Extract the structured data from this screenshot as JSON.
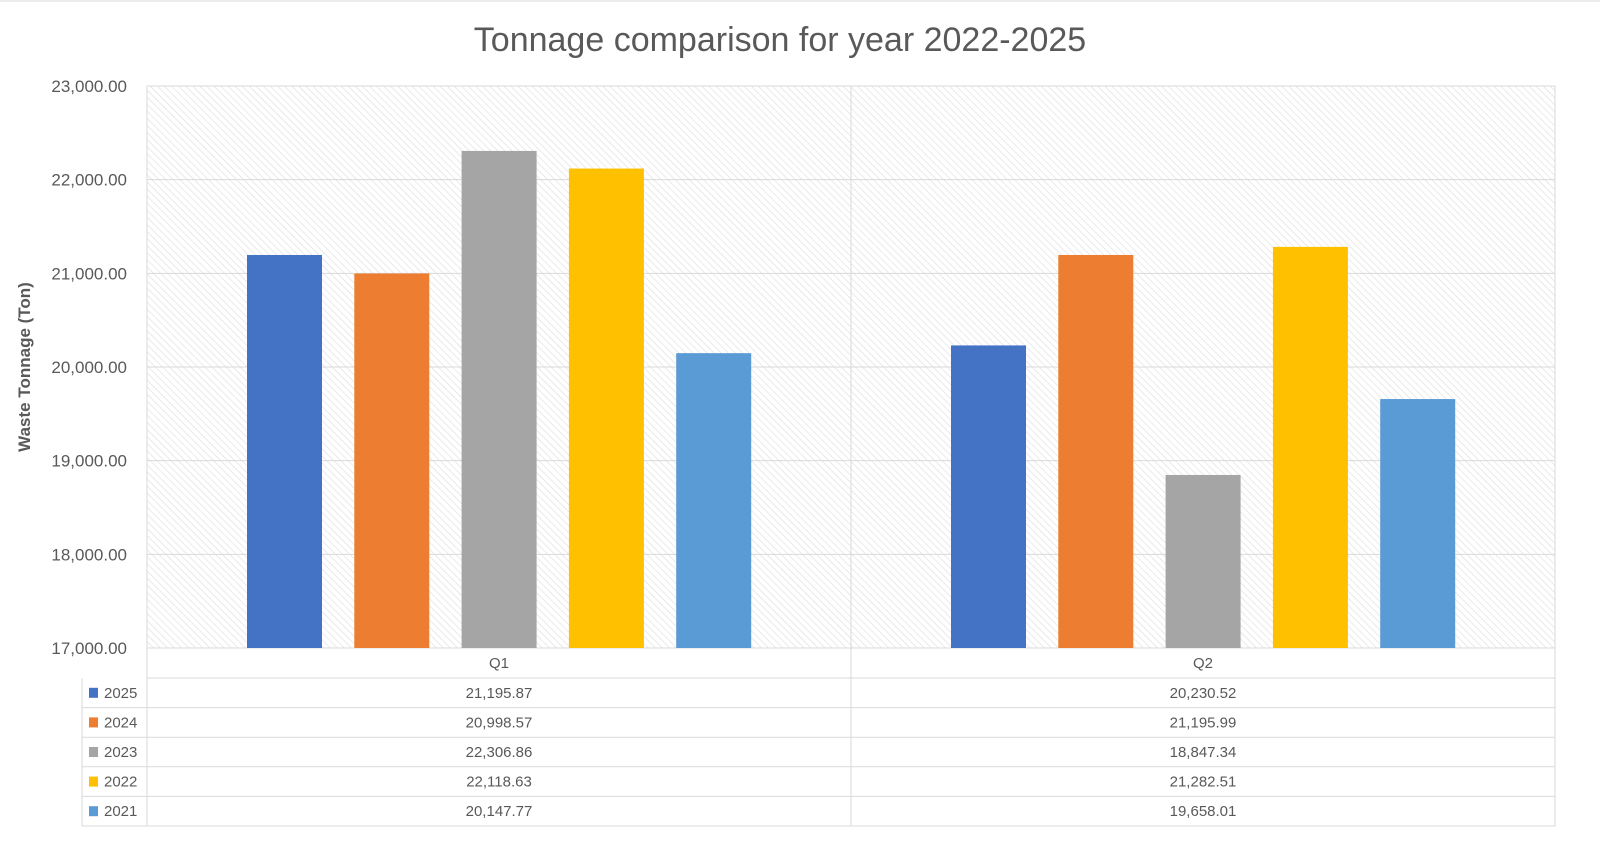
{
  "chart_data": {
    "type": "bar",
    "title": "Tonnage comparison for year 2022-2025",
    "xlabel": "",
    "ylabel": "Waste Tonnage (Ton)",
    "ylim": [
      17000,
      23000
    ],
    "yticks": [
      "17,000.00",
      "18,000.00",
      "19,000.00",
      "20,000.00",
      "21,000.00",
      "22,000.00",
      "23,000.00"
    ],
    "ytick_values": [
      17000,
      18000,
      19000,
      20000,
      21000,
      22000,
      23000
    ],
    "grid": true,
    "legend": "data-table-left",
    "categories": [
      "Q1",
      "Q2"
    ],
    "series": [
      {
        "name": "2025",
        "color": "#4472C4",
        "values": [
          21195.87,
          20230.52
        ],
        "labels": [
          "21,195.87",
          "20,230.52"
        ]
      },
      {
        "name": "2024",
        "color": "#ED7D31",
        "values": [
          20998.57,
          21195.99
        ],
        "labels": [
          "20,998.57",
          "21,195.99"
        ]
      },
      {
        "name": "2023",
        "color": "#A5A5A5",
        "values": [
          22306.86,
          18847.34
        ],
        "labels": [
          "22,306.86",
          "18,847.34"
        ]
      },
      {
        "name": "2022",
        "color": "#FFC000",
        "values": [
          22118.63,
          21282.51
        ],
        "labels": [
          "22,118.63",
          "21,282.51"
        ]
      },
      {
        "name": "2021",
        "color": "#5B9BD5",
        "values": [
          20147.77,
          19658.01
        ],
        "labels": [
          "20,147.77",
          "19,658.01"
        ]
      }
    ]
  }
}
